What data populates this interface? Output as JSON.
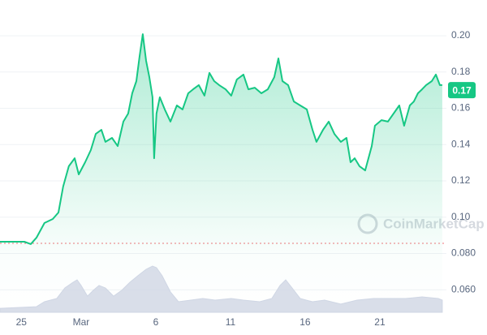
{
  "chart_data": {
    "type": "area",
    "watermark": "CoinMarketCap",
    "xlim": [
      -5.43,
      24.35
    ],
    "ylim": [
      0.0476,
      0.2197
    ],
    "xticks": [
      {
        "value": -4,
        "label": "25"
      },
      {
        "value": 0,
        "label": "Mar"
      },
      {
        "value": 5,
        "label": "6"
      },
      {
        "value": 10,
        "label": "11"
      },
      {
        "value": 15,
        "label": "16"
      },
      {
        "value": 20,
        "label": "21"
      }
    ],
    "yticks": [
      {
        "value": 0.2,
        "label": "0.20"
      },
      0.18,
      0.16,
      0.14,
      0.12,
      {
        "value": 0.1,
        "label": "0.10"
      },
      {
        "value": 0.08,
        "label": "0.080"
      },
      {
        "value": 0.06,
        "label": "0.060"
      }
    ],
    "grid": true,
    "reference_line": 0.0856,
    "reference_color": "#ea3943",
    "price_tag": 0.17,
    "series": [
      {
        "color": "#16c784",
        "x": [
          -5.43,
          -3.8,
          -3.37,
          -2.99,
          -2.45,
          -1.9,
          -1.52,
          -1.2,
          -0.82,
          -0.43,
          -0.16,
          0.27,
          0.65,
          0.98,
          1.36,
          1.63,
          2.07,
          2.45,
          2.83,
          3.15,
          3.42,
          3.7,
          3.91,
          4.13,
          4.35,
          4.57,
          4.78,
          4.89,
          5.05,
          5.27,
          5.6,
          5.98,
          6.41,
          6.79,
          7.17,
          7.5,
          7.88,
          8.26,
          8.59,
          8.91,
          9.24,
          9.67,
          10.05,
          10.43,
          10.87,
          11.2,
          11.63,
          12.07,
          12.5,
          12.93,
          13.21,
          13.48,
          13.86,
          14.24,
          14.67,
          15.11,
          15.49,
          15.76,
          16.2,
          16.58,
          16.96,
          17.39,
          17.77,
          18.04,
          18.32,
          18.64,
          19.02,
          19.46,
          19.67,
          20.11,
          20.54,
          20.92,
          21.3,
          21.63,
          22.01,
          22.28,
          22.55,
          22.83,
          23.1,
          23.48,
          23.75,
          24.02,
          24.18
        ],
        "values": [
          0.0865,
          0.0865,
          0.0852,
          0.0887,
          0.0968,
          0.099,
          0.1026,
          0.1169,
          0.1281,
          0.1325,
          0.1236,
          0.1303,
          0.137,
          0.1459,
          0.1482,
          0.1415,
          0.1437,
          0.1392,
          0.1527,
          0.1571,
          0.1683,
          0.175,
          0.1884,
          0.2009,
          0.1862,
          0.1772,
          0.1661,
          0.1325,
          0.1571,
          0.1661,
          0.1594,
          0.1527,
          0.1616,
          0.1594,
          0.1683,
          0.1705,
          0.1728,
          0.167,
          0.1795,
          0.175,
          0.1728,
          0.1705,
          0.167,
          0.1759,
          0.1786,
          0.1705,
          0.1714,
          0.1683,
          0.1705,
          0.1772,
          0.1875,
          0.175,
          0.1728,
          0.1638,
          0.1616,
          0.1594,
          0.1482,
          0.1415,
          0.1482,
          0.1527,
          0.1459,
          0.1415,
          0.1437,
          0.1303,
          0.1325,
          0.1281,
          0.1258,
          0.1392,
          0.1504,
          0.1535,
          0.1527,
          0.1571,
          0.1616,
          0.1504,
          0.1616,
          0.1638,
          0.1683,
          0.1705,
          0.1728,
          0.175,
          0.1786,
          0.1728,
          0.1728
        ]
      },
      {
        "color": "#cfd6e4",
        "x": [
          -5.43,
          -2.99,
          -2.45,
          -1.63,
          -1.09,
          -0.54,
          -0.27,
          0,
          0.43,
          0.82,
          1.2,
          1.63,
          2.17,
          2.72,
          3.26,
          3.8,
          4.35,
          4.78,
          5.05,
          5.43,
          5.98,
          6.52,
          7.34,
          8.15,
          8.97,
          10.05,
          10.87,
          11.96,
          12.77,
          13.32,
          13.7,
          14.13,
          14.67,
          15.49,
          16.3,
          17.39,
          18.48,
          19.57,
          20.65,
          21.74,
          22.83,
          23.91,
          24.18
        ],
        "values": [
          0.0498,
          0.0507,
          0.0534,
          0.0552,
          0.061,
          0.0641,
          0.0655,
          0.0624,
          0.0565,
          0.0597,
          0.0624,
          0.061,
          0.0565,
          0.0597,
          0.0641,
          0.0677,
          0.0713,
          0.0731,
          0.0722,
          0.0677,
          0.0588,
          0.0534,
          0.0543,
          0.0552,
          0.0543,
          0.0552,
          0.0543,
          0.0534,
          0.0552,
          0.0624,
          0.0655,
          0.061,
          0.0552,
          0.0534,
          0.0543,
          0.0521,
          0.0543,
          0.0552,
          0.0552,
          0.0552,
          0.0561,
          0.0552,
          0.0543
        ]
      }
    ]
  }
}
